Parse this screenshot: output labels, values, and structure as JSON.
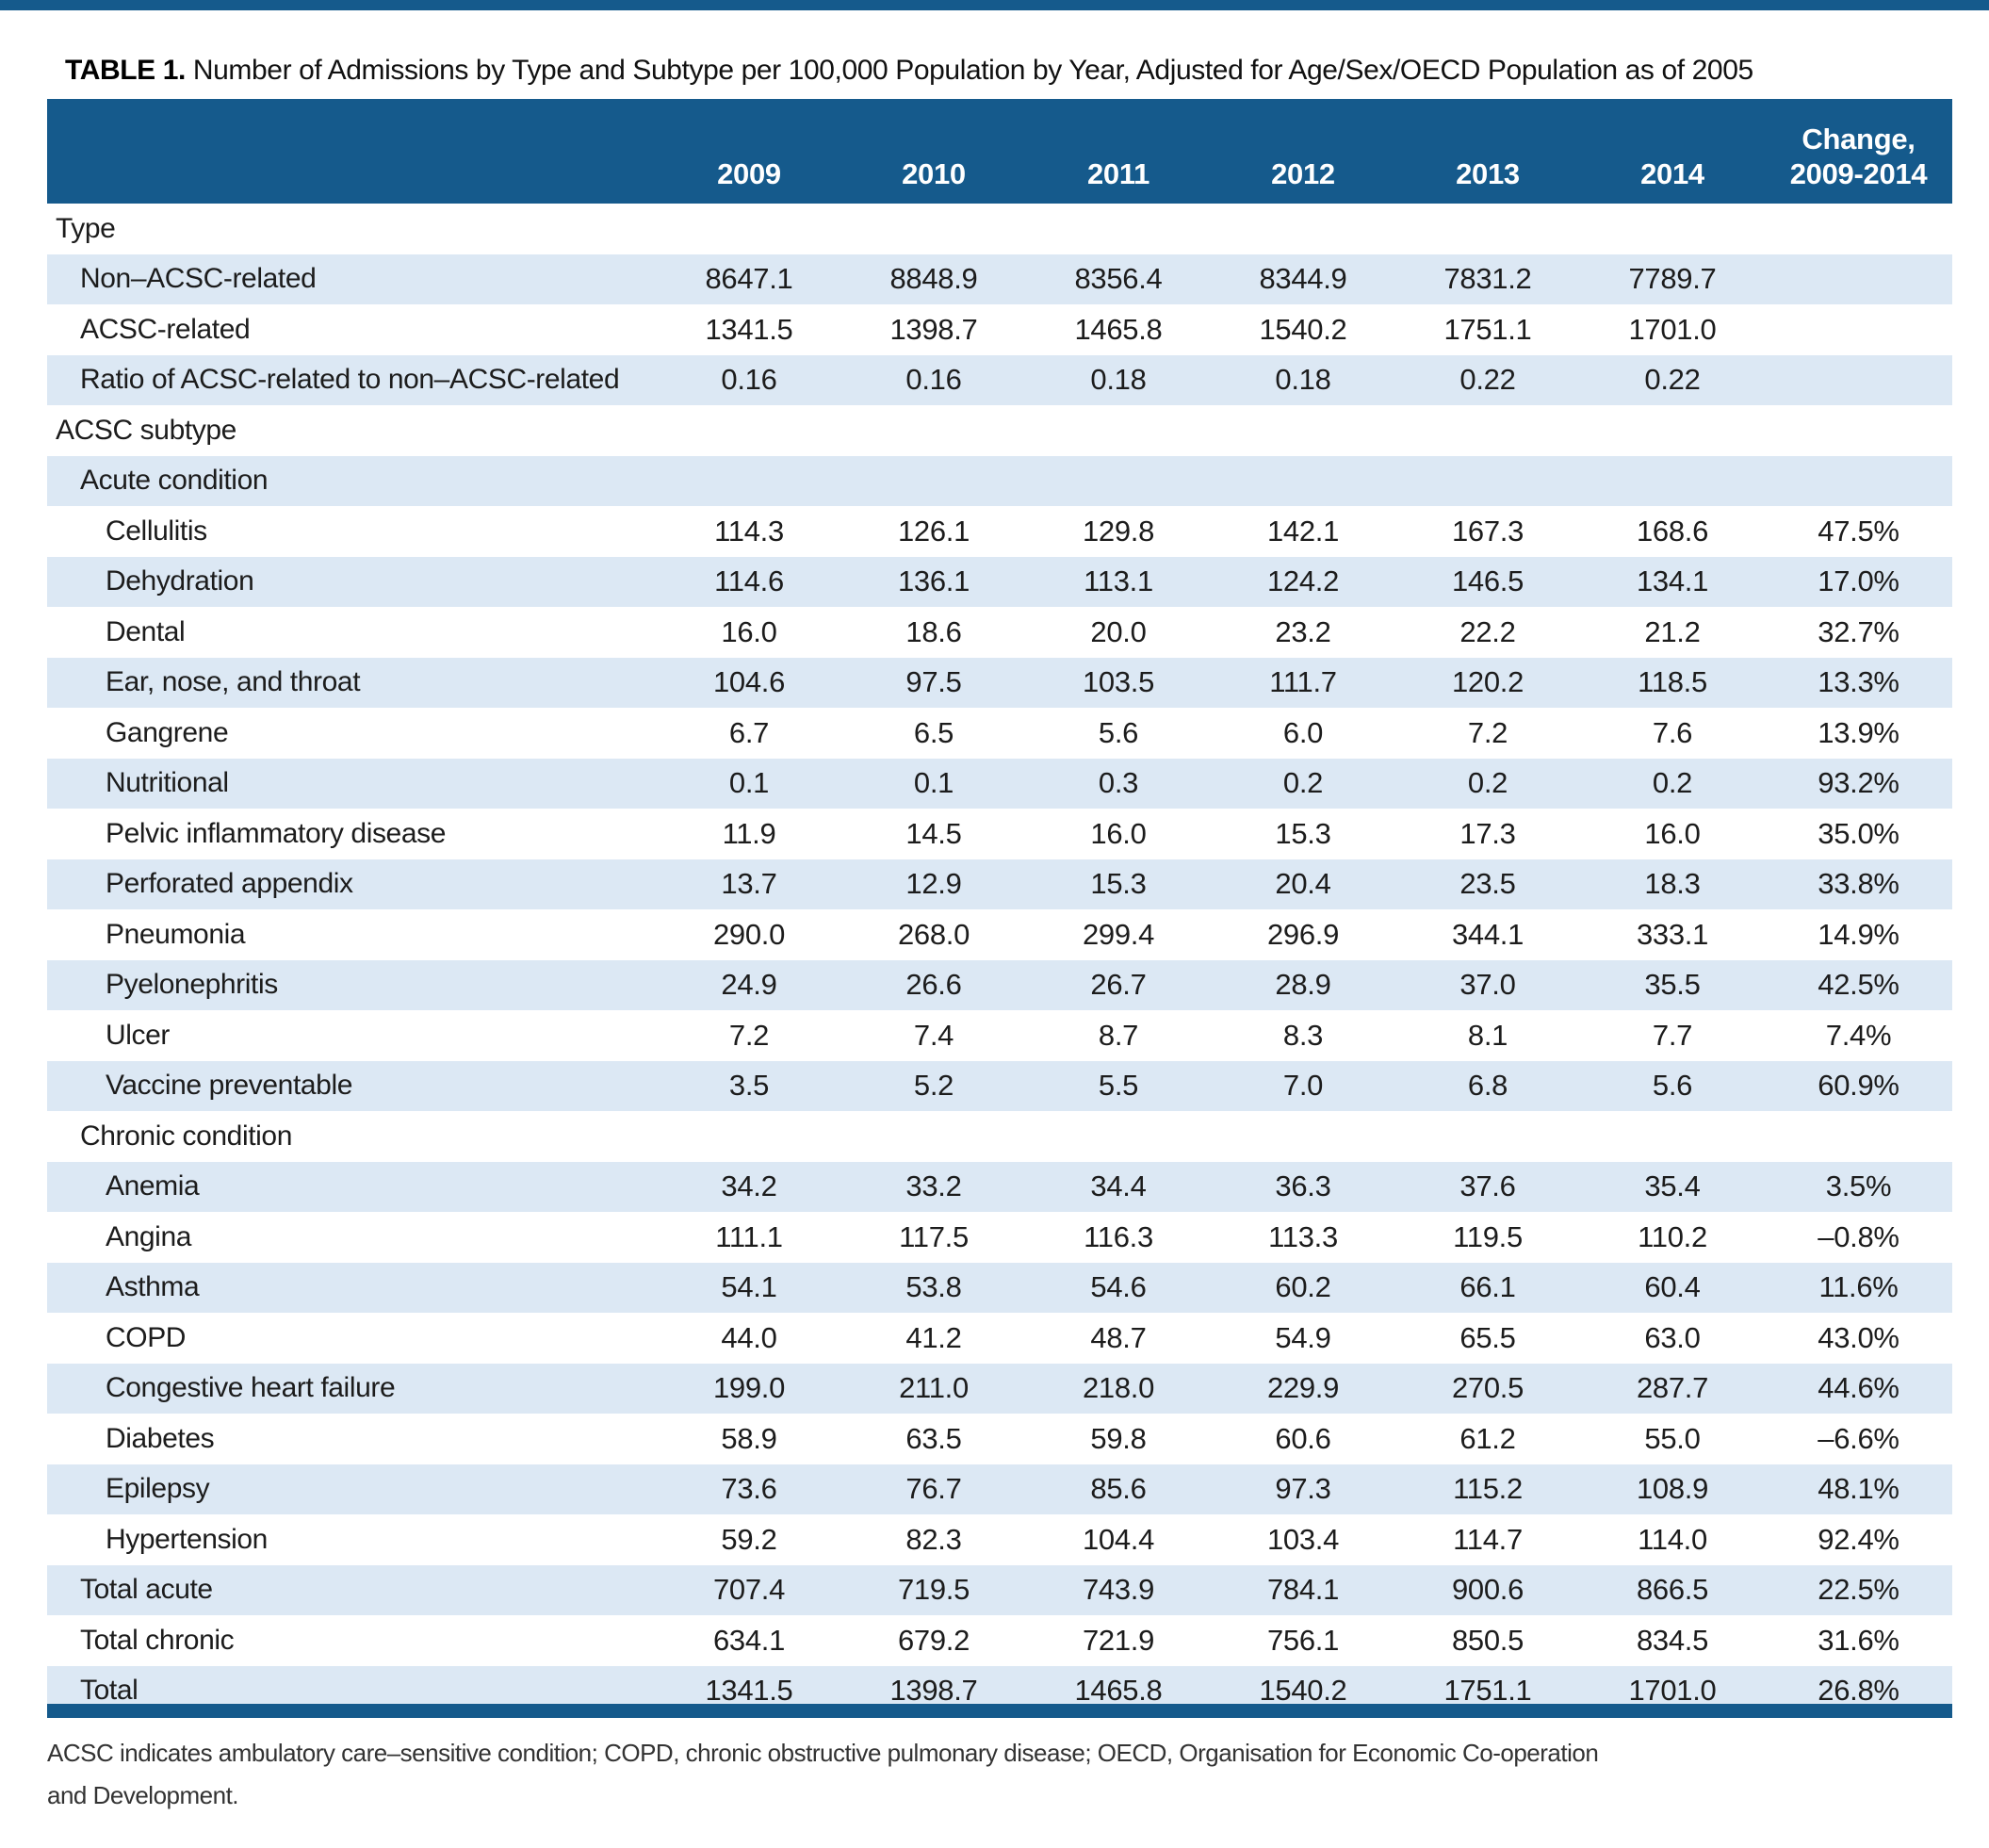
{
  "page": {
    "title_label": "TABLE 1.",
    "title_text": " Number of Admissions by Type and Subtype per 100,000 Population by Year, Adjusted for Age/Sex/OECD Population as of 2005",
    "footnote_line1": "ACSC indicates ambulatory care–sensitive condition; COPD, chronic obstructive pulmonary disease; OECD, Organisation for Economic Co-operation",
    "footnote_line2": "and Development."
  },
  "colors": {
    "header_blue": "#155a8c",
    "row_blue": "#dce8f4"
  },
  "table": {
    "year_columns": [
      "2009",
      "2010",
      "2011",
      "2012",
      "2013",
      "2014"
    ],
    "change_column": {
      "line1": "Change,",
      "line2": "2009-2014"
    },
    "rows": [
      {
        "label": "Type",
        "indent": 0,
        "values": [
          "",
          "",
          "",
          "",
          "",
          ""
        ],
        "change": ""
      },
      {
        "label": "Non–ACSC-related",
        "indent": 1,
        "values": [
          "8647.1",
          "8848.9",
          "8356.4",
          "8344.9",
          "7831.2",
          "7789.7"
        ],
        "change": ""
      },
      {
        "label": "ACSC-related",
        "indent": 1,
        "values": [
          "1341.5",
          "1398.7",
          "1465.8",
          "1540.2",
          "1751.1",
          "1701.0"
        ],
        "change": ""
      },
      {
        "label": "Ratio of ACSC-related to non–ACSC-related",
        "indent": 1,
        "values": [
          "0.16",
          "0.16",
          "0.18",
          "0.18",
          "0.22",
          "0.22"
        ],
        "change": ""
      },
      {
        "label": "ACSC subtype",
        "indent": 0,
        "values": [
          "",
          "",
          "",
          "",
          "",
          ""
        ],
        "change": ""
      },
      {
        "label": "Acute condition",
        "indent": 1,
        "values": [
          "",
          "",
          "",
          "",
          "",
          ""
        ],
        "change": ""
      },
      {
        "label": "Cellulitis",
        "indent": 2,
        "values": [
          "114.3",
          "126.1",
          "129.8",
          "142.1",
          "167.3",
          "168.6"
        ],
        "change": "47.5%"
      },
      {
        "label": "Dehydration",
        "indent": 2,
        "values": [
          "114.6",
          "136.1",
          "113.1",
          "124.2",
          "146.5",
          "134.1"
        ],
        "change": "17.0%"
      },
      {
        "label": "Dental",
        "indent": 2,
        "values": [
          "16.0",
          "18.6",
          "20.0",
          "23.2",
          "22.2",
          "21.2"
        ],
        "change": "32.7%"
      },
      {
        "label": "Ear, nose, and throat",
        "indent": 2,
        "values": [
          "104.6",
          "97.5",
          "103.5",
          "111.7",
          "120.2",
          "118.5"
        ],
        "change": "13.3%"
      },
      {
        "label": "Gangrene",
        "indent": 2,
        "values": [
          "6.7",
          "6.5",
          "5.6",
          "6.0",
          "7.2",
          "7.6"
        ],
        "change": "13.9%"
      },
      {
        "label": "Nutritional",
        "indent": 2,
        "values": [
          "0.1",
          "0.1",
          "0.3",
          "0.2",
          "0.2",
          "0.2"
        ],
        "change": "93.2%"
      },
      {
        "label": "Pelvic inflammatory disease",
        "indent": 2,
        "values": [
          "11.9",
          "14.5",
          "16.0",
          "15.3",
          "17.3",
          "16.0"
        ],
        "change": "35.0%"
      },
      {
        "label": "Perforated appendix",
        "indent": 2,
        "values": [
          "13.7",
          "12.9",
          "15.3",
          "20.4",
          "23.5",
          "18.3"
        ],
        "change": "33.8%"
      },
      {
        "label": "Pneumonia",
        "indent": 2,
        "values": [
          "290.0",
          "268.0",
          "299.4",
          "296.9",
          "344.1",
          "333.1"
        ],
        "change": "14.9%"
      },
      {
        "label": "Pyelonephritis",
        "indent": 2,
        "values": [
          "24.9",
          "26.6",
          "26.7",
          "28.9",
          "37.0",
          "35.5"
        ],
        "change": "42.5%"
      },
      {
        "label": "Ulcer",
        "indent": 2,
        "values": [
          "7.2",
          "7.4",
          "8.7",
          "8.3",
          "8.1",
          "7.7"
        ],
        "change": "7.4%"
      },
      {
        "label": "Vaccine preventable",
        "indent": 2,
        "values": [
          "3.5",
          "5.2",
          "5.5",
          "7.0",
          "6.8",
          "5.6"
        ],
        "change": "60.9%"
      },
      {
        "label": "Chronic condition",
        "indent": 1,
        "values": [
          "",
          "",
          "",
          "",
          "",
          ""
        ],
        "change": ""
      },
      {
        "label": "Anemia",
        "indent": 2,
        "values": [
          "34.2",
          "33.2",
          "34.4",
          "36.3",
          "37.6",
          "35.4"
        ],
        "change": "3.5%"
      },
      {
        "label": "Angina",
        "indent": 2,
        "values": [
          "111.1",
          "117.5",
          "116.3",
          "113.3",
          "119.5",
          "110.2"
        ],
        "change": "–0.8%"
      },
      {
        "label": "Asthma",
        "indent": 2,
        "values": [
          "54.1",
          "53.8",
          "54.6",
          "60.2",
          "66.1",
          "60.4"
        ],
        "change": "11.6%"
      },
      {
        "label": "COPD",
        "indent": 2,
        "values": [
          "44.0",
          "41.2",
          "48.7",
          "54.9",
          "65.5",
          "63.0"
        ],
        "change": "43.0%"
      },
      {
        "label": "Congestive heart failure",
        "indent": 2,
        "values": [
          "199.0",
          "211.0",
          "218.0",
          "229.9",
          "270.5",
          "287.7"
        ],
        "change": "44.6%"
      },
      {
        "label": "Diabetes",
        "indent": 2,
        "values": [
          "58.9",
          "63.5",
          "59.8",
          "60.6",
          "61.2",
          "55.0"
        ],
        "change": "–6.6%"
      },
      {
        "label": "Epilepsy",
        "indent": 2,
        "values": [
          "73.6",
          "76.7",
          "85.6",
          "97.3",
          "115.2",
          "108.9"
        ],
        "change": "48.1%"
      },
      {
        "label": "Hypertension",
        "indent": 2,
        "values": [
          "59.2",
          "82.3",
          "104.4",
          "103.4",
          "114.7",
          "114.0"
        ],
        "change": "92.4%"
      },
      {
        "label": "Total acute",
        "indent": 1,
        "values": [
          "707.4",
          "719.5",
          "743.9",
          "784.1",
          "900.6",
          "866.5"
        ],
        "change": "22.5%"
      },
      {
        "label": "Total chronic",
        "indent": 1,
        "values": [
          "634.1",
          "679.2",
          "721.9",
          "756.1",
          "850.5",
          "834.5"
        ],
        "change": "31.6%"
      },
      {
        "label": "Total",
        "indent": 1,
        "values": [
          "1341.5",
          "1398.7",
          "1465.8",
          "1540.2",
          "1751.1",
          "1701.0"
        ],
        "change": "26.8%"
      }
    ]
  }
}
